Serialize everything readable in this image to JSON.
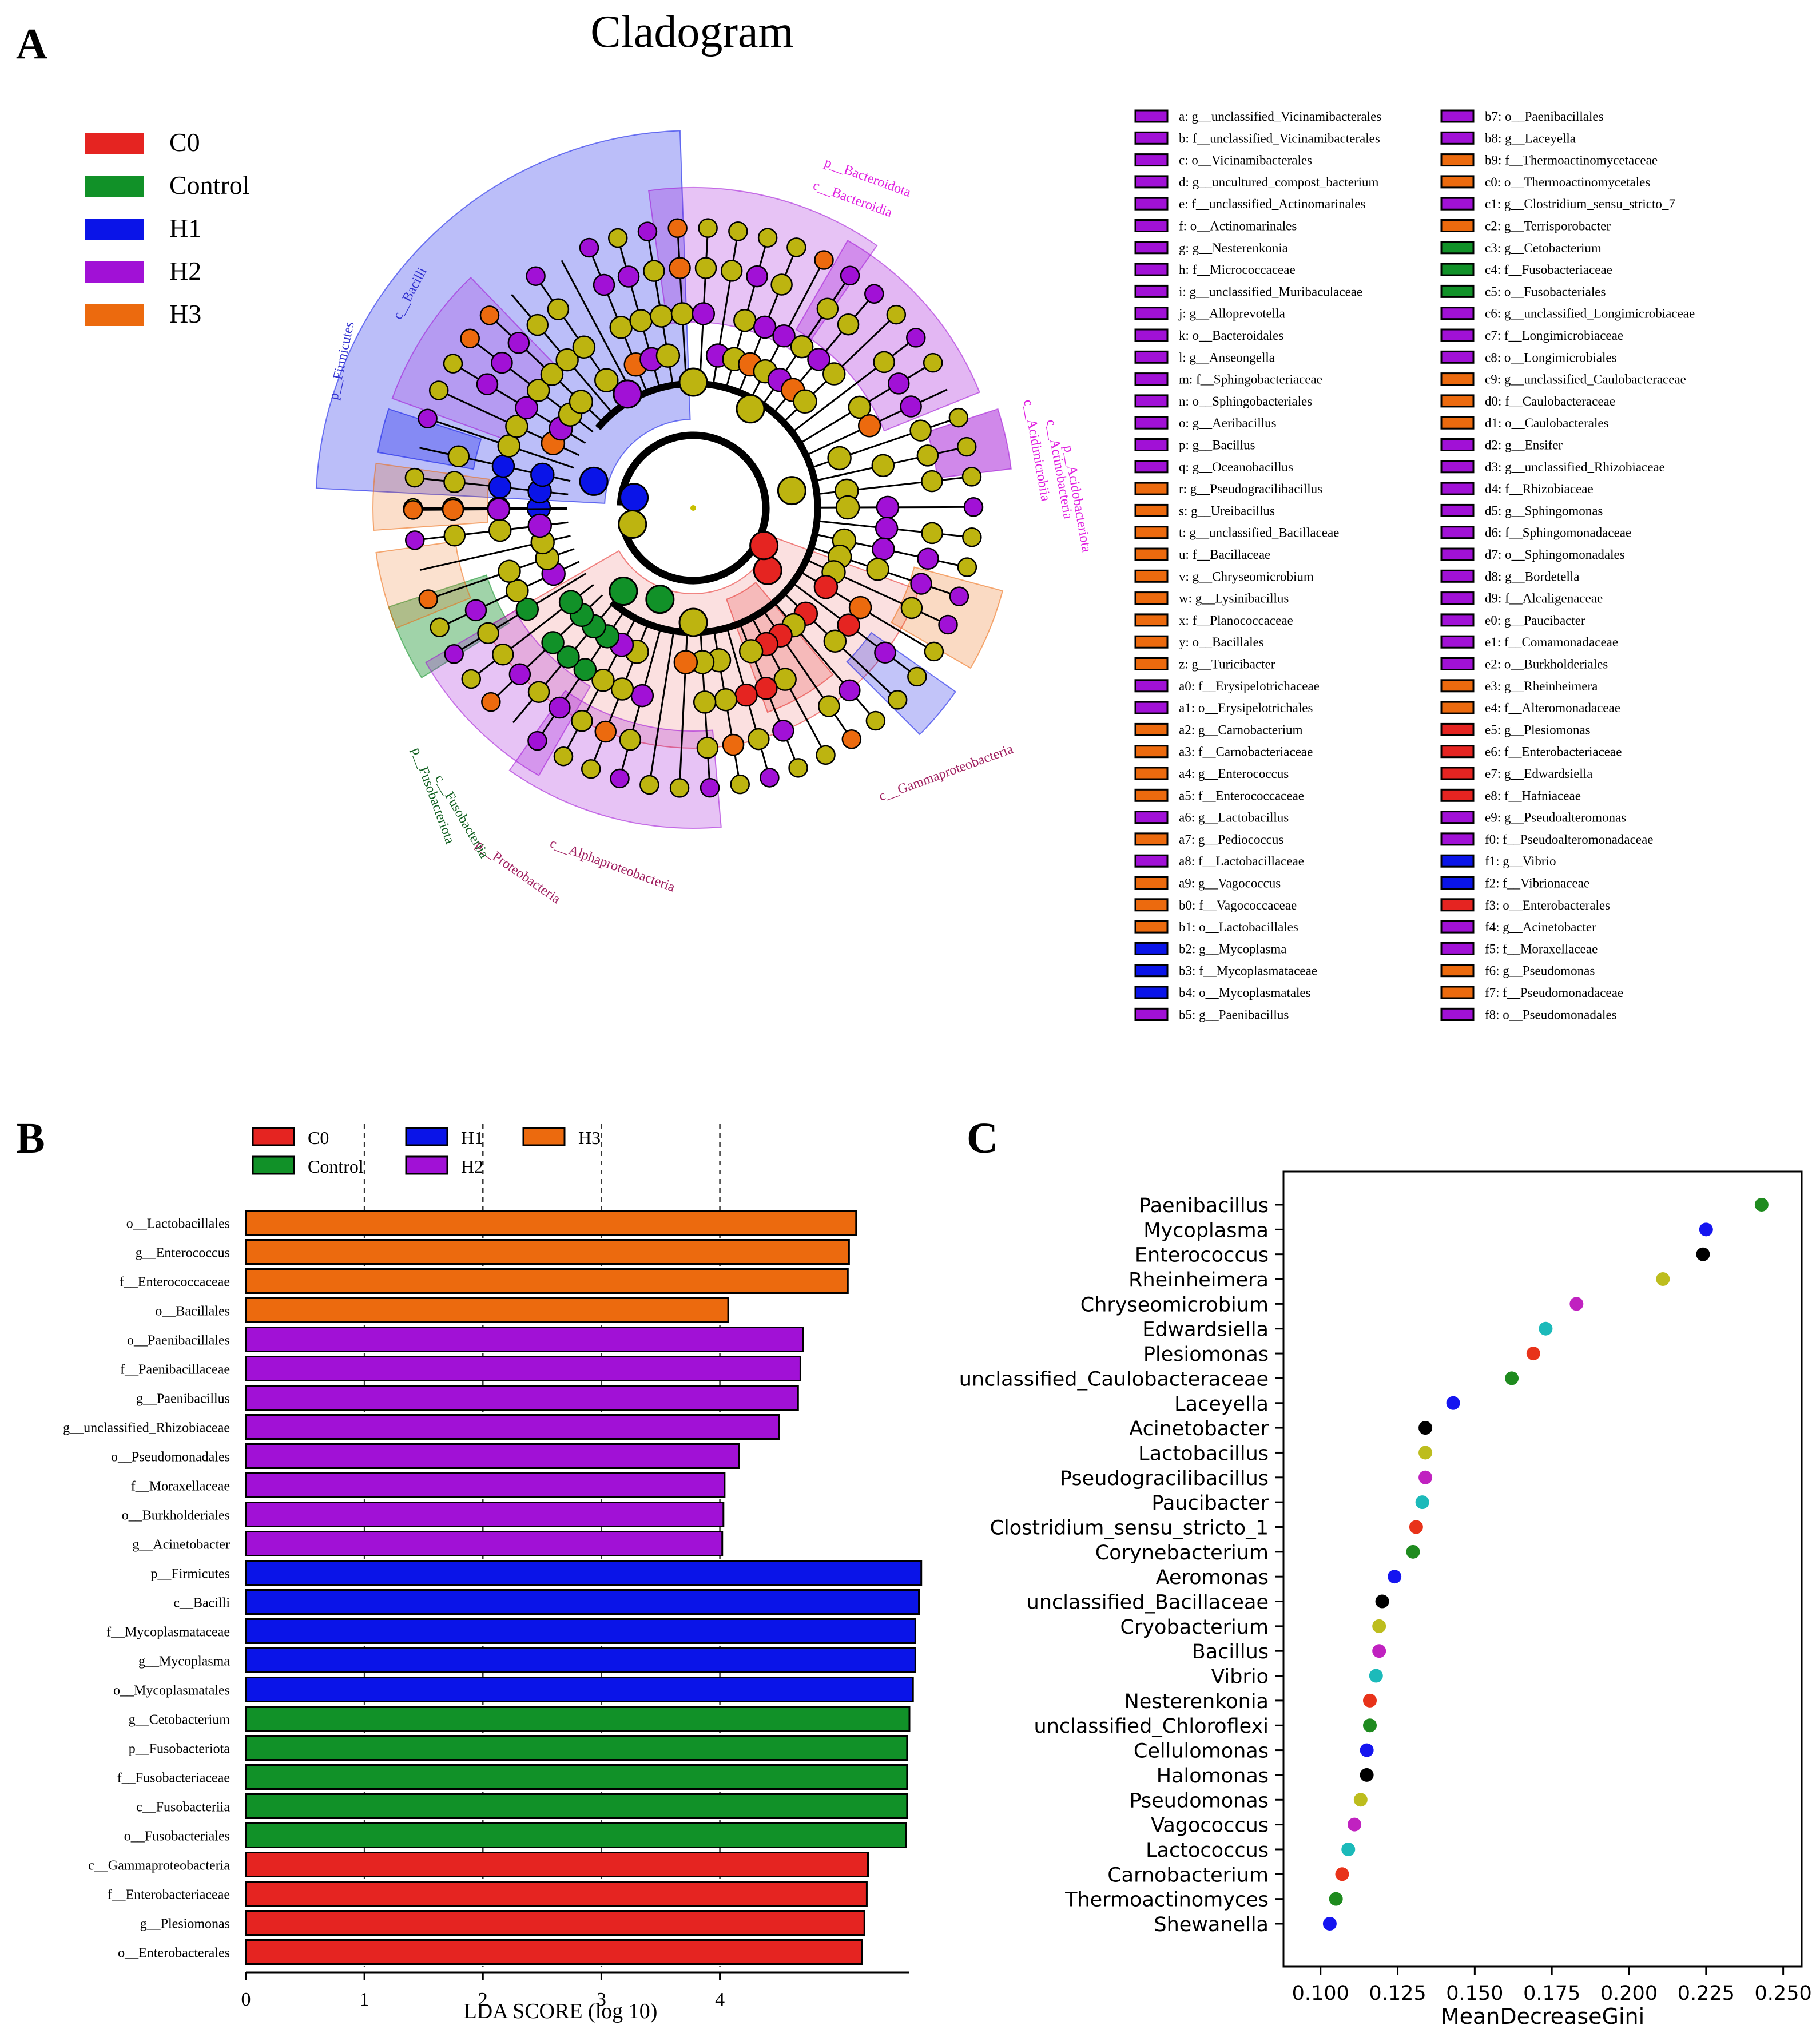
{
  "panels": {
    "a": "A",
    "b": "B",
    "c": "C"
  },
  "cladogram": {
    "title": "Cladogram",
    "legend": [
      {
        "label": "C0",
        "color": "#E52421"
      },
      {
        "label": "Control",
        "color": "#119128"
      },
      {
        "label": "H1",
        "color": "#0A14E8"
      },
      {
        "label": "H2",
        "color": "#A111D6"
      },
      {
        "label": "H3",
        "color": "#EC6A0E"
      }
    ],
    "ring_labels": [
      "p__Bacteroidota",
      "c__Bacteroidia",
      "c__Bacilli",
      "p__Firmicutes",
      "c__Acidimicrobiia",
      "c__Actinobacteria",
      "p__Acidobacteriota",
      "c__Gammaproteobacteria",
      "c__Alphaproteobacteria",
      "p__Proteobacteria",
      "c__Fusobacteriia",
      "p__Fusobacteriota"
    ],
    "key_list": [
      {
        "label": "a: g__unclassified_Vicinamibacterales",
        "color": "#A111D6"
      },
      {
        "label": "b: f__unclassified_Vicinamibacterales",
        "color": "#A111D6"
      },
      {
        "label": "c: o__Vicinamibacterales",
        "color": "#A111D6"
      },
      {
        "label": "d: g__uncultured_compost_bacterium",
        "color": "#A111D6"
      },
      {
        "label": "e: f__unclassified_Actinomarinales",
        "color": "#A111D6"
      },
      {
        "label": "f: o__Actinomarinales",
        "color": "#A111D6"
      },
      {
        "label": "g: g__Nesterenkonia",
        "color": "#A111D6"
      },
      {
        "label": "h: f__Micrococcaceae",
        "color": "#A111D6"
      },
      {
        "label": "i: g__unclassified_Muribaculaceae",
        "color": "#A111D6"
      },
      {
        "label": "j: g__Alloprevotella",
        "color": "#A111D6"
      },
      {
        "label": "k: o__Bacteroidales",
        "color": "#A111D6"
      },
      {
        "label": "l: g__Anseongella",
        "color": "#A111D6"
      },
      {
        "label": "m: f__Sphingobacteriaceae",
        "color": "#A111D6"
      },
      {
        "label": "n: o__Sphingobacteriales",
        "color": "#A111D6"
      },
      {
        "label": "o: g__Aeribacillus",
        "color": "#A111D6"
      },
      {
        "label": "p: g__Bacillus",
        "color": "#A111D6"
      },
      {
        "label": "q: g__Oceanobacillus",
        "color": "#A111D6"
      },
      {
        "label": "r: g__Pseudogracilibacillus",
        "color": "#EC6A0E"
      },
      {
        "label": "s: g__Ureibacillus",
        "color": "#EC6A0E"
      },
      {
        "label": "t: g__unclassified_Bacillaceae",
        "color": "#EC6A0E"
      },
      {
        "label": "u: f__Bacillaceae",
        "color": "#EC6A0E"
      },
      {
        "label": "v: g__Chryseomicrobium",
        "color": "#EC6A0E"
      },
      {
        "label": "w: g__Lysinibacillus",
        "color": "#EC6A0E"
      },
      {
        "label": "x: f__Planococcaceae",
        "color": "#EC6A0E"
      },
      {
        "label": "y: o__Bacillales",
        "color": "#EC6A0E"
      },
      {
        "label": "z: g__Turicibacter",
        "color": "#EC6A0E"
      },
      {
        "label": "a0: f__Erysipelotrichaceae",
        "color": "#A111D6"
      },
      {
        "label": "a1: o__Erysipelotrichales",
        "color": "#A111D6"
      },
      {
        "label": "a2: g__Carnobacterium",
        "color": "#EC6A0E"
      },
      {
        "label": "a3: f__Carnobacteriaceae",
        "color": "#EC6A0E"
      },
      {
        "label": "a4: g__Enterococcus",
        "color": "#EC6A0E"
      },
      {
        "label": "a5: f__Enterococcaceae",
        "color": "#EC6A0E"
      },
      {
        "label": "a6: g__Lactobacillus",
        "color": "#A111D6"
      },
      {
        "label": "a7: g__Pediococcus",
        "color": "#EC6A0E"
      },
      {
        "label": "a8: f__Lactobacillaceae",
        "color": "#A111D6"
      },
      {
        "label": "a9: g__Vagococcus",
        "color": "#EC6A0E"
      },
      {
        "label": "b0: f__Vagococcaceae",
        "color": "#EC6A0E"
      },
      {
        "label": "b1: o__Lactobacillales",
        "color": "#EC6A0E"
      },
      {
        "label": "b2: g__Mycoplasma",
        "color": "#0A14E8"
      },
      {
        "label": "b3: f__Mycoplasmataceae",
        "color": "#0A14E8"
      },
      {
        "label": "b4: o__Mycoplasmatales",
        "color": "#0A14E8"
      },
      {
        "label": "b5: g__Paenibacillus",
        "color": "#A111D6"
      },
      {
        "label": "b7: o__Paenibacillales",
        "color": "#A111D6"
      },
      {
        "label": "b8: g__Laceyella",
        "color": "#A111D6"
      },
      {
        "label": "b9: f__Thermoactinomycetaceae",
        "color": "#EC6A0E"
      },
      {
        "label": "c0: o__Thermoactinomycetales",
        "color": "#EC6A0E"
      },
      {
        "label": "c1: g__Clostridium_sensu_stricto_7",
        "color": "#A111D6"
      },
      {
        "label": "c2: g__Terrisporobacter",
        "color": "#EC6A0E"
      },
      {
        "label": "c3: g__Cetobacterium",
        "color": "#119128"
      },
      {
        "label": "c4: f__Fusobacteriaceae",
        "color": "#119128"
      },
      {
        "label": "c5: o__Fusobacteriales",
        "color": "#119128"
      },
      {
        "label": "c6: g__unclassified_Longimicrobiaceae",
        "color": "#A111D6"
      },
      {
        "label": "c7: f__Longimicrobiaceae",
        "color": "#A111D6"
      },
      {
        "label": "c8: o__Longimicrobiales",
        "color": "#A111D6"
      },
      {
        "label": "c9: g__unclassified_Caulobacteraceae",
        "color": "#EC6A0E"
      },
      {
        "label": "d0: f__Caulobacteraceae",
        "color": "#EC6A0E"
      },
      {
        "label": "d1: o__Caulobacterales",
        "color": "#EC6A0E"
      },
      {
        "label": "d2: g__Ensifer",
        "color": "#A111D6"
      },
      {
        "label": "d3: g__unclassified_Rhizobiaceae",
        "color": "#A111D6"
      },
      {
        "label": "d4: f__Rhizobiaceae",
        "color": "#A111D6"
      },
      {
        "label": "d5: g__Sphingomonas",
        "color": "#A111D6"
      },
      {
        "label": "d6: f__Sphingomonadaceae",
        "color": "#A111D6"
      },
      {
        "label": "d7: o__Sphingomonadales",
        "color": "#A111D6"
      },
      {
        "label": "d8: g__Bordetella",
        "color": "#A111D6"
      },
      {
        "label": "d9: f__Alcaligenaceae",
        "color": "#A111D6"
      },
      {
        "label": "e0: g__Paucibacter",
        "color": "#A111D6"
      },
      {
        "label": "e1: f__Comamonadaceae",
        "color": "#A111D6"
      },
      {
        "label": "e2: o__Burkholderiales",
        "color": "#A111D6"
      },
      {
        "label": "e3: g__Rheinheimera",
        "color": "#EC6A0E"
      },
      {
        "label": "e4: f__Alteromonadaceae",
        "color": "#EC6A0E"
      },
      {
        "label": "e5: g__Plesiomonas",
        "color": "#E52421"
      },
      {
        "label": "e6: f__Enterobacteriaceae",
        "color": "#E52421"
      },
      {
        "label": "e7: g__Edwardsiella",
        "color": "#E52421"
      },
      {
        "label": "e8: f__Hafniaceae",
        "color": "#E52421"
      },
      {
        "label": "e9: g__Pseudoalteromonas",
        "color": "#A111D6"
      },
      {
        "label": "f0: f__Pseudoalteromonadaceae",
        "color": "#A111D6"
      },
      {
        "label": "f1: g__Vibrio",
        "color": "#0A14E8"
      },
      {
        "label": "f2: f__Vibrionaceae",
        "color": "#0A14E8"
      },
      {
        "label": "f3: o__Enterobacterales",
        "color": "#E52421"
      },
      {
        "label": "f4: g__Acinetobacter",
        "color": "#A111D6"
      },
      {
        "label": "f5: f__Moraxellaceae",
        "color": "#A111D6"
      },
      {
        "label": "f6: g__Pseudomonas",
        "color": "#EC6A0E"
      },
      {
        "label": "f7: f__Pseudomonadaceae",
        "color": "#EC6A0E"
      },
      {
        "label": "f8: o__Pseudomonadales",
        "color": "#A111D6"
      }
    ]
  },
  "chart_data": [
    {
      "type": "bar",
      "orientation": "horizontal",
      "xlabel": "LDA SCORE (log 10)",
      "xlim": [
        0,
        5.6
      ],
      "xticks": [
        0,
        1,
        2,
        3,
        4
      ],
      "grid": "vertical dashed",
      "legend": [
        "C0",
        "H1",
        "H3",
        "Control",
        "H2"
      ],
      "legend_placement": "top",
      "categories": [
        "o__Lactobacillales",
        "g__Enterococcus",
        "f__Enterococcaceae",
        "o__Bacillales",
        "o__Paenibacillales",
        "f__Paenibacillaceae",
        "g__Paenibacillus",
        "g__unclassified_Rhizobiaceae",
        "o__Pseudomonadales",
        "f__Moraxellaceae",
        "o__Burkholderiales",
        "g__Acinetobacter",
        "p__Firmicutes",
        "c__Bacilli",
        "f__Mycoplasmataceae",
        "g__Mycoplasma",
        "o__Mycoplasmatales",
        "g__Cetobacterium",
        "p__Fusobacteriota",
        "f__Fusobacteriaceae",
        "c__Fusobacteriia",
        "o__Fusobacteriales",
        "c__Gammaproteobacteria",
        "f__Enterobacteriaceae",
        "g__Plesiomonas",
        "o__Enterobacterales"
      ],
      "values": [
        5.15,
        5.09,
        5.08,
        4.07,
        4.7,
        4.68,
        4.66,
        4.5,
        4.16,
        4.04,
        4.03,
        4.02,
        5.7,
        5.68,
        5.65,
        5.65,
        5.63,
        5.6,
        5.58,
        5.58,
        5.58,
        5.57,
        5.25,
        5.24,
        5.22,
        5.2
      ],
      "groups": [
        "H3",
        "H3",
        "H3",
        "H3",
        "H2",
        "H2",
        "H2",
        "H2",
        "H2",
        "H2",
        "H2",
        "H2",
        "H1",
        "H1",
        "H1",
        "H1",
        "H1",
        "Control",
        "Control",
        "Control",
        "Control",
        "Control",
        "C0",
        "C0",
        "C0",
        "C0"
      ]
    },
    {
      "type": "scatter",
      "xlabel": "MeanDecreaseGini",
      "xlim": [
        0.088,
        0.256
      ],
      "xticks": [
        "0.100",
        "0.125",
        "0.150",
        "0.175",
        "0.200",
        "0.225",
        "0.250"
      ],
      "categories": [
        "Paenibacillus",
        "Mycoplasma",
        "Enterococcus",
        "Rheinheimera",
        "Chryseomicrobium",
        "Edwardsiella",
        "Plesiomonas",
        "unclassified_Caulobacteraceae",
        "Laceyella",
        "Acinetobacter",
        "Lactobacillus",
        "Pseudogracilibacillus",
        "Paucibacter",
        "Clostridium_sensu_stricto_1",
        "Corynebacterium",
        "Aeromonas",
        "unclassified_Bacillaceae",
        "Cryobacterium",
        "Bacillus",
        "Vibrio",
        "Nesterenkonia",
        "unclassified_Chloroflexi",
        "Cellulomonas",
        "Halomonas",
        "Pseudomonas",
        "Vagococcus",
        "Lactococcus",
        "Carnobacterium",
        "Thermoactinomyces",
        "Shewanella"
      ],
      "values": [
        0.243,
        0.225,
        0.224,
        0.211,
        0.183,
        0.173,
        0.169,
        0.162,
        0.143,
        0.134,
        0.134,
        0.134,
        0.133,
        0.131,
        0.13,
        0.124,
        0.12,
        0.119,
        0.119,
        0.118,
        0.116,
        0.116,
        0.115,
        0.115,
        0.113,
        0.111,
        0.109,
        0.107,
        0.105,
        0.103
      ],
      "colors": [
        "#1F8B1F",
        "#1515F0",
        "#000000",
        "#BDBD1E",
        "#C022C0",
        "#1CBABA",
        "#E8331A",
        "#1F8B1F",
        "#1515F0",
        "#000000",
        "#BDBD1E",
        "#C022C0",
        "#1CBABA",
        "#E8331A",
        "#1F8B1F",
        "#1515F0",
        "#000000",
        "#BDBD1E",
        "#C022C0",
        "#1CBABA",
        "#E8331A",
        "#1F8B1F",
        "#1515F0",
        "#000000",
        "#BDBD1E",
        "#C022C0",
        "#1CBABA",
        "#E8331A",
        "#1F8B1F",
        "#1515F0"
      ]
    }
  ]
}
